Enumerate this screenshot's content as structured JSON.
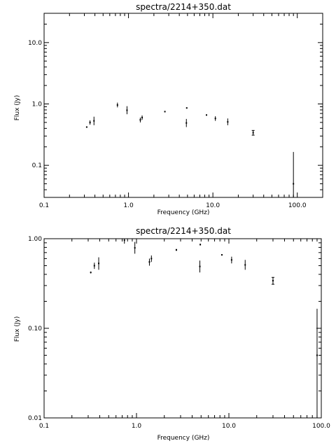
{
  "chart_data": [
    {
      "type": "scatter",
      "title": "spectra/2214+350.dat",
      "xlabel": "Frequency (GHz)",
      "ylabel": "Flux (Jy)",
      "xscale": "log",
      "yscale": "log",
      "xlim": [
        0.1,
        200
      ],
      "ylim": [
        0.03,
        30
      ],
      "xticks": [
        0.1,
        1.0,
        10.0,
        100.0
      ],
      "xtick_labels": [
        "0.1",
        "1.0",
        "10.0",
        "100.0"
      ],
      "yticks": [
        0.1,
        1.0,
        10.0
      ],
      "ytick_labels": [
        "0.1",
        "1.0",
        "10.0"
      ],
      "grid": false,
      "points": [
        {
          "x": 0.32,
          "y": 0.42,
          "ylo": 0.41,
          "yhi": 0.43
        },
        {
          "x": 0.35,
          "y": 0.5,
          "ylo": 0.46,
          "yhi": 0.54
        },
        {
          "x": 0.39,
          "y": 0.53,
          "ylo": 0.45,
          "yhi": 0.62
        },
        {
          "x": 0.74,
          "y": 0.96,
          "ylo": 0.88,
          "yhi": 1.05
        },
        {
          "x": 0.96,
          "y": 0.79,
          "ylo": 0.68,
          "yhi": 0.92
        },
        {
          "x": 1.38,
          "y": 0.55,
          "ylo": 0.5,
          "yhi": 0.6
        },
        {
          "x": 1.45,
          "y": 0.6,
          "ylo": 0.55,
          "yhi": 0.65
        },
        {
          "x": 2.7,
          "y": 0.75,
          "ylo": 0.73,
          "yhi": 0.77
        },
        {
          "x": 4.85,
          "y": 0.49,
          "ylo": 0.42,
          "yhi": 0.57
        },
        {
          "x": 4.9,
          "y": 0.86,
          "ylo": 0.84,
          "yhi": 0.88
        },
        {
          "x": 8.4,
          "y": 0.66,
          "ylo": 0.65,
          "yhi": 0.67
        },
        {
          "x": 10.7,
          "y": 0.58,
          "ylo": 0.53,
          "yhi": 0.63
        },
        {
          "x": 15,
          "y": 0.51,
          "ylo": 0.45,
          "yhi": 0.58
        },
        {
          "x": 30,
          "y": 0.34,
          "ylo": 0.31,
          "yhi": 0.37
        },
        {
          "x": 90,
          "y": 0.05,
          "ylo": 0.001,
          "yhi": 0.165
        }
      ]
    },
    {
      "type": "scatter",
      "title": "spectra/2214+350.dat",
      "xlabel": "Frequency (GHz)",
      "ylabel": "Flux (Jy)",
      "xscale": "log",
      "yscale": "log",
      "xlim": [
        0.1,
        100
      ],
      "ylim": [
        0.01,
        1
      ],
      "xticks": [
        0.1,
        1.0,
        10.0,
        100.0
      ],
      "xtick_labels": [
        "0.1",
        "1.0",
        "10.0",
        "100.0"
      ],
      "yticks": [
        0.01,
        0.1,
        1.0
      ],
      "ytick_labels": [
        "0.01",
        "0.10",
        "1.00"
      ],
      "grid": false,
      "points": [
        {
          "x": 0.32,
          "y": 0.42,
          "ylo": 0.41,
          "yhi": 0.43
        },
        {
          "x": 0.35,
          "y": 0.5,
          "ylo": 0.46,
          "yhi": 0.54
        },
        {
          "x": 0.39,
          "y": 0.53,
          "ylo": 0.45,
          "yhi": 0.62
        },
        {
          "x": 0.74,
          "y": 0.96,
          "ylo": 0.88,
          "yhi": 1.05
        },
        {
          "x": 0.96,
          "y": 0.79,
          "ylo": 0.68,
          "yhi": 0.92
        },
        {
          "x": 1.38,
          "y": 0.55,
          "ylo": 0.5,
          "yhi": 0.6
        },
        {
          "x": 1.45,
          "y": 0.6,
          "ylo": 0.55,
          "yhi": 0.65
        },
        {
          "x": 2.7,
          "y": 0.75,
          "ylo": 0.73,
          "yhi": 0.77
        },
        {
          "x": 4.85,
          "y": 0.49,
          "ylo": 0.42,
          "yhi": 0.57
        },
        {
          "x": 4.9,
          "y": 0.86,
          "ylo": 0.84,
          "yhi": 0.88
        },
        {
          "x": 8.4,
          "y": 0.66,
          "ylo": 0.65,
          "yhi": 0.67
        },
        {
          "x": 10.7,
          "y": 0.58,
          "ylo": 0.53,
          "yhi": 0.63
        },
        {
          "x": 15,
          "y": 0.51,
          "ylo": 0.45,
          "yhi": 0.58
        },
        {
          "x": 30,
          "y": 0.34,
          "ylo": 0.31,
          "yhi": 0.37
        },
        {
          "x": 90,
          "y": 0.05,
          "ylo": 0.001,
          "yhi": 0.165
        }
      ]
    }
  ]
}
